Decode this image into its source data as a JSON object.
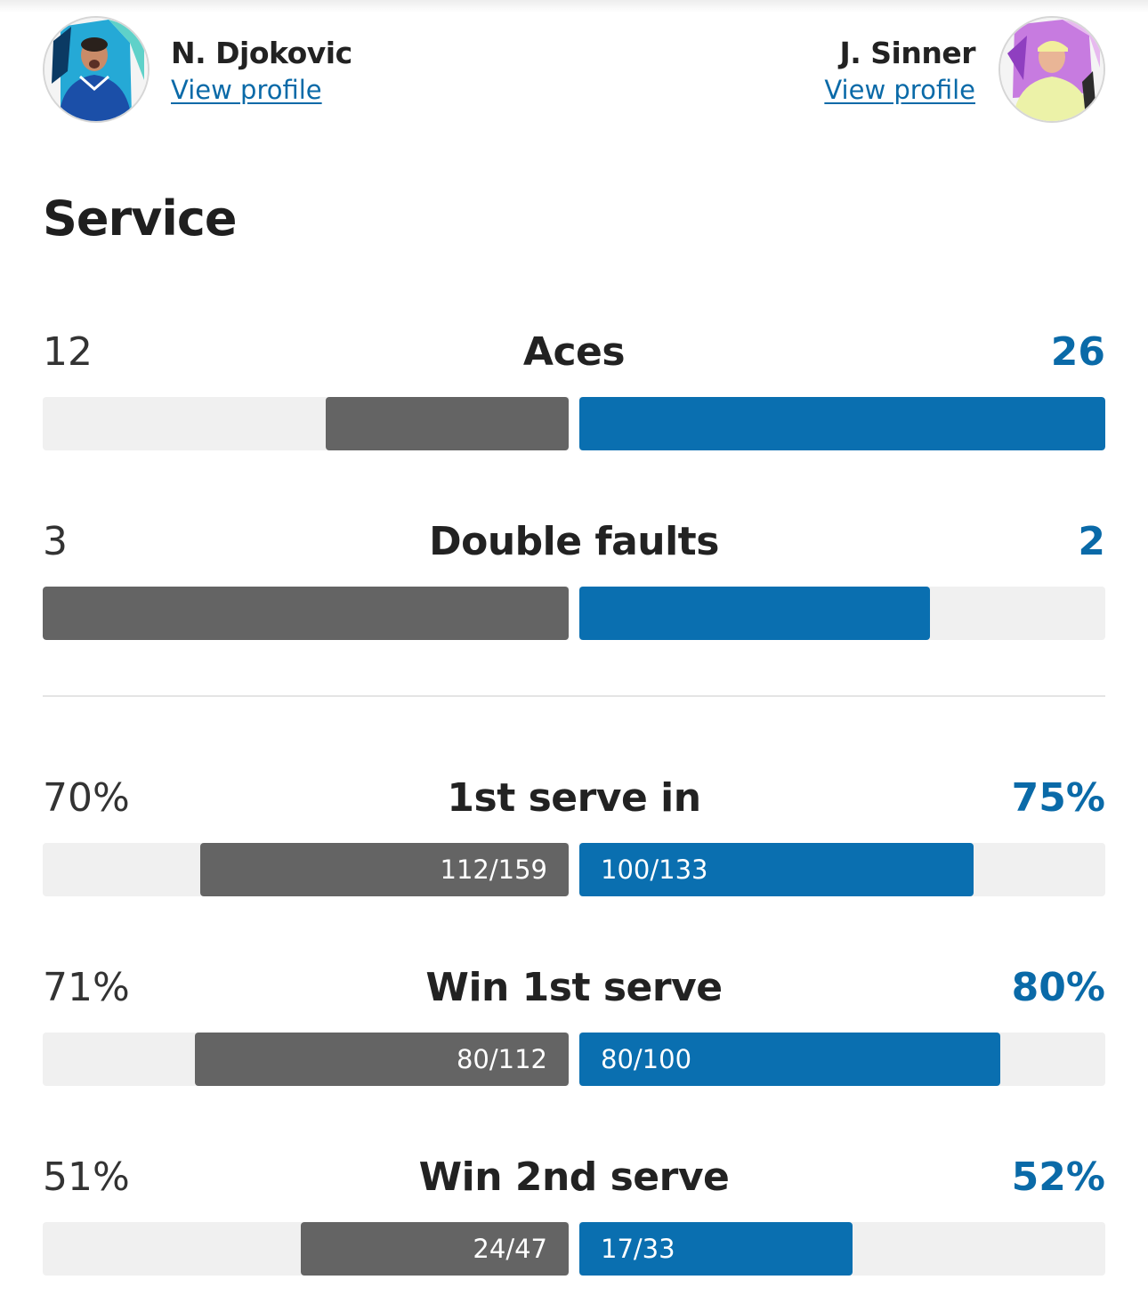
{
  "players": {
    "left": {
      "name": "N. Djokovic",
      "link": "View profile",
      "accent": "#646464"
    },
    "right": {
      "name": "J. Sinner",
      "link": "View profile",
      "accent": "#0a6fb0"
    }
  },
  "section": {
    "title": "Service"
  },
  "stats": [
    {
      "label": "Aces",
      "left_value": "12",
      "right_value": "26",
      "left_fill": 0.4615,
      "right_fill": 1.0,
      "left_detail": "",
      "right_detail": ""
    },
    {
      "label": "Double faults",
      "left_value": "3",
      "right_value": "2",
      "left_fill": 1.0,
      "right_fill": 0.6667,
      "left_detail": "",
      "right_detail": ""
    },
    {
      "label": "1st serve in",
      "left_value": "70%",
      "right_value": "75%",
      "left_fill": 0.7,
      "right_fill": 0.75,
      "left_detail": "112/159",
      "right_detail": "100/133"
    },
    {
      "label": "Win 1st serve",
      "left_value": "71%",
      "right_value": "80%",
      "left_fill": 0.71,
      "right_fill": 0.8,
      "left_detail": "80/112",
      "right_detail": "80/100"
    },
    {
      "label": "Win 2nd serve",
      "left_value": "51%",
      "right_value": "52%",
      "left_fill": 0.51,
      "right_fill": 0.52,
      "left_detail": "24/47",
      "right_detail": "17/33"
    }
  ]
}
